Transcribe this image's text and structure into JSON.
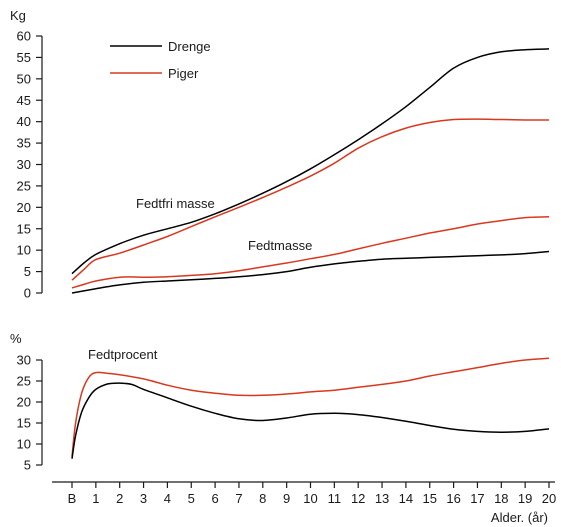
{
  "colors": {
    "drenge": "#000000",
    "piger": "#d9381e",
    "axis": "#1a1a1a"
  },
  "chart_data": [
    {
      "type": "line",
      "ylabel": "Kg",
      "ylim": [
        0,
        60
      ],
      "yticks": [
        "0",
        "5",
        "10",
        "15",
        "20",
        "25",
        "30",
        "35",
        "40",
        "45",
        "50",
        "55",
        "60"
      ],
      "legend": [
        {
          "name": "Drenge",
          "color": "#000000"
        },
        {
          "name": "Piger",
          "color": "#d9381e"
        }
      ],
      "annotations": [
        "Fedtfri masse",
        "Fedtmasse"
      ],
      "series": [
        {
          "name": "Drenge",
          "group": "Fedtfri masse",
          "color": "#000000",
          "x": [
            0,
            0.5,
            1,
            2,
            3,
            4,
            5,
            6,
            7,
            8,
            9,
            10,
            11,
            12,
            13,
            14,
            15,
            16,
            17,
            18,
            19,
            20
          ],
          "y": [
            4.5,
            7,
            9,
            11.5,
            13.5,
            15,
            16.5,
            18.5,
            20.8,
            23.3,
            26,
            29,
            32.3,
            35.8,
            39.5,
            43.5,
            48,
            52.5,
            55,
            56.3,
            56.8,
            57
          ]
        },
        {
          "name": "Piger",
          "group": "Fedtfri masse",
          "color": "#d9381e",
          "x": [
            0,
            0.5,
            1,
            2,
            3,
            4,
            5,
            6,
            7,
            8,
            9,
            10,
            11,
            12,
            13,
            14,
            15,
            16,
            17,
            18,
            19,
            20
          ],
          "y": [
            3,
            5.5,
            7.8,
            9.3,
            11.2,
            13.2,
            15.5,
            17.8,
            20,
            22.3,
            24.7,
            27.3,
            30.3,
            33.8,
            36.5,
            38.5,
            39.8,
            40.5,
            40.6,
            40.5,
            40.4,
            40.4
          ]
        },
        {
          "name": "Piger",
          "group": "Fedtmasse",
          "color": "#d9381e",
          "x": [
            0,
            0.5,
            1,
            2,
            3,
            4,
            5,
            6,
            7,
            8,
            9,
            10,
            11,
            12,
            13,
            14,
            15,
            16,
            17,
            18,
            19,
            20
          ],
          "y": [
            1.2,
            2,
            2.8,
            3.7,
            3.7,
            3.8,
            4.1,
            4.5,
            5.2,
            6.1,
            7,
            8,
            9,
            10.3,
            11.6,
            12.8,
            14,
            15,
            16.1,
            16.9,
            17.6,
            17.8
          ]
        },
        {
          "name": "Drenge",
          "group": "Fedtmasse",
          "color": "#000000",
          "x": [
            0,
            0.5,
            1,
            2,
            3,
            4,
            5,
            6,
            7,
            8,
            9,
            10,
            11,
            12,
            13,
            14,
            15,
            16,
            17,
            18,
            19,
            20
          ],
          "y": [
            0,
            0.5,
            1,
            1.9,
            2.5,
            2.8,
            3.1,
            3.4,
            3.8,
            4.3,
            5,
            6,
            6.8,
            7.4,
            7.9,
            8.1,
            8.3,
            8.5,
            8.7,
            8.9,
            9.2,
            9.7
          ]
        }
      ]
    },
    {
      "type": "line",
      "ylabel": "%",
      "ylim": [
        5,
        30
      ],
      "yticks": [
        "5",
        "10",
        "15",
        "20",
        "25",
        "30"
      ],
      "xlabel": "Alder. (år)",
      "xticks": [
        "B",
        "1",
        "2",
        "3",
        "4",
        "5",
        "6",
        "7",
        "8",
        "9",
        "10",
        "11",
        "12",
        "13",
        "14",
        "15",
        "16",
        "17",
        "18",
        "19",
        "20"
      ],
      "annotations": [
        "Fedtprocent"
      ],
      "series": [
        {
          "name": "Piger",
          "group": "Fedtprocent",
          "color": "#d9381e",
          "x": [
            0,
            0.15,
            0.4,
            0.7,
            1,
            1.5,
            2,
            3,
            4,
            5,
            6,
            7,
            8,
            9,
            10,
            11,
            12,
            13,
            14,
            15,
            16,
            17,
            18,
            19,
            20
          ],
          "y": [
            7,
            15,
            22,
            25.8,
            27,
            26.8,
            26.5,
            25.5,
            24,
            22.8,
            22.1,
            21.6,
            21.6,
            21.9,
            22.4,
            22.8,
            23.5,
            24.2,
            25,
            26.2,
            27.2,
            28.2,
            29.2,
            30,
            30.4
          ]
        },
        {
          "name": "Drenge",
          "group": "Fedtprocent",
          "color": "#000000",
          "x": [
            0,
            0.15,
            0.4,
            0.7,
            1,
            1.5,
            2,
            2.5,
            3,
            4,
            5,
            6,
            7,
            8,
            9,
            10,
            11,
            12,
            13,
            14,
            15,
            16,
            17,
            18,
            19,
            20
          ],
          "y": [
            6.5,
            12,
            17.5,
            21,
            23,
            24.3,
            24.5,
            24.2,
            23,
            21,
            19,
            17.3,
            16,
            15.6,
            16.2,
            17.1,
            17.3,
            17,
            16.3,
            15.4,
            14.4,
            13.5,
            13,
            12.8,
            13,
            13.6
          ]
        }
      ]
    }
  ]
}
